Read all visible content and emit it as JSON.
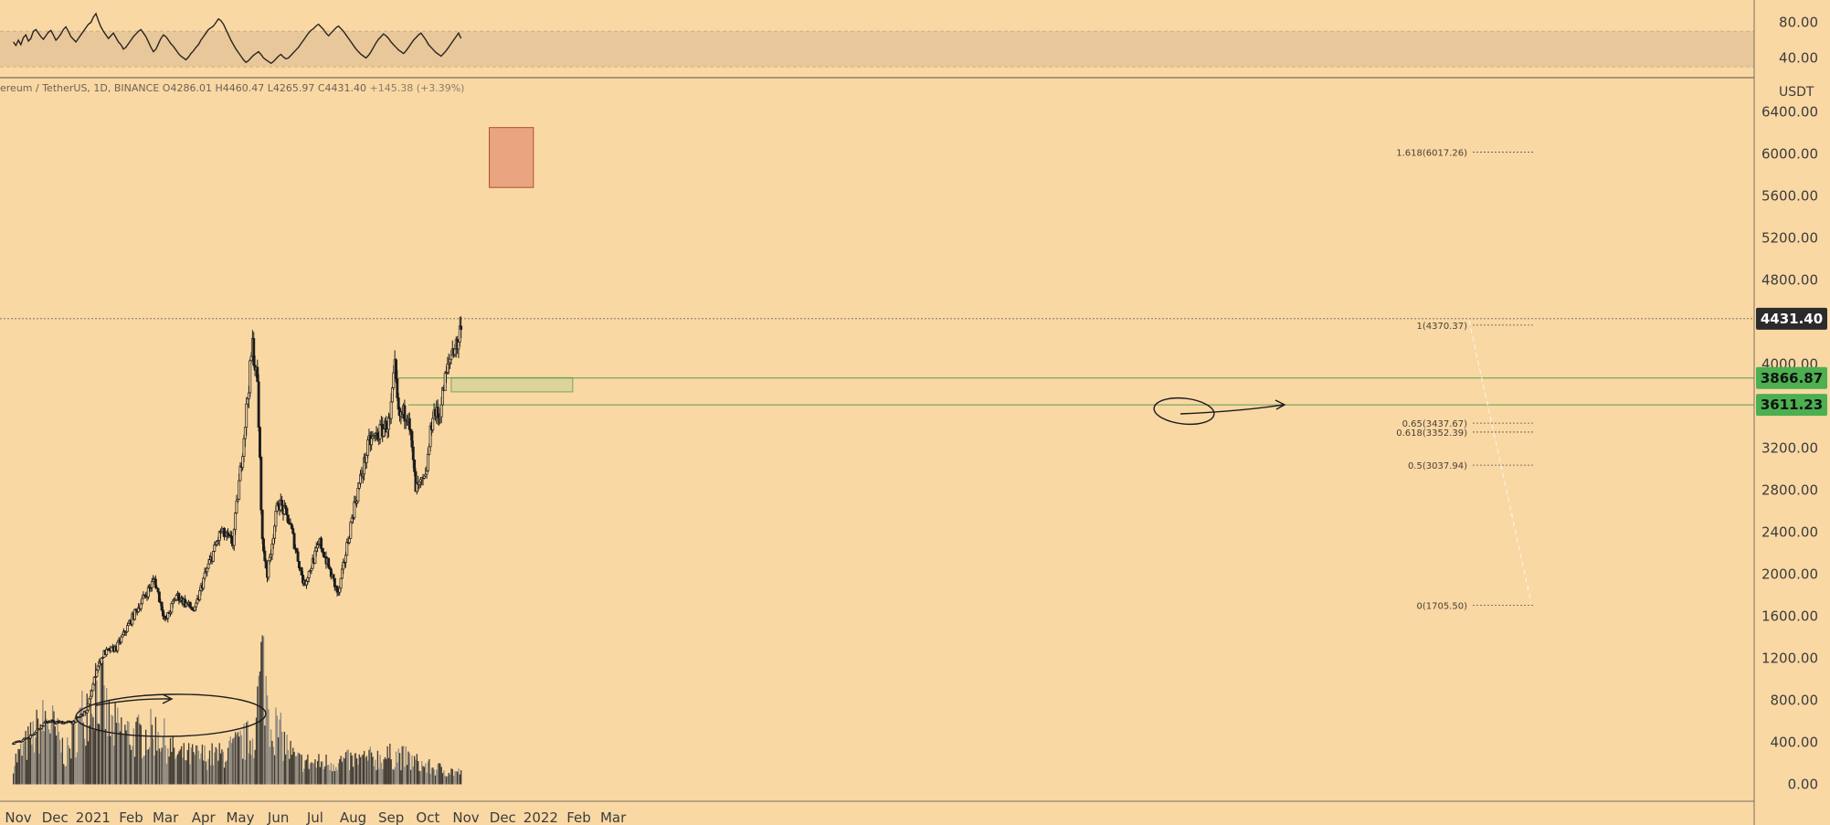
{
  "header": {
    "symbol": "ereum / TetherUS, 1D, BINANCE",
    "open": "O4286.01",
    "high": "H4460.47",
    "low": "L4265.97",
    "close": "C4431.40",
    "change": "+145.38 (+3.39%)"
  },
  "unit_label": "USDT",
  "colors": {
    "background": "#f9d8a4",
    "candle": "#1c1c1c",
    "rsi_band": "#e8c79a",
    "target_box": "#e8a57f",
    "support_zone": "#dcd49a",
    "support_tag": "#4caf50",
    "last_price_tag": "#2b2b2b"
  },
  "chart_data": [
    {
      "type": "line",
      "name": "rsi-pane",
      "y_ticks": [
        "80.00",
        "40.00"
      ],
      "ylim": [
        25,
        95
      ],
      "band": [
        30,
        70
      ],
      "x_start": "2020-10-28",
      "x_end": "2021-10-28",
      "values": [
        58,
        54,
        60,
        55,
        63,
        66,
        59,
        62,
        70,
        72,
        68,
        64,
        61,
        65,
        69,
        71,
        66,
        60,
        63,
        67,
        72,
        75,
        70,
        64,
        61,
        58,
        62,
        66,
        70,
        74,
        78,
        80,
        86,
        90,
        82,
        75,
        70,
        66,
        62,
        65,
        68,
        63,
        58,
        55,
        50,
        52,
        56,
        60,
        64,
        67,
        70,
        72,
        68,
        64,
        58,
        52,
        47,
        50,
        56,
        62,
        66,
        64,
        60,
        56,
        53,
        49,
        45,
        42,
        40,
        38,
        41,
        45,
        48,
        52,
        55,
        60,
        64,
        68,
        72,
        74,
        76,
        80,
        84,
        82,
        78,
        72,
        66,
        60,
        55,
        50,
        46,
        42,
        38,
        35,
        37,
        40,
        43,
        45,
        47,
        44,
        40,
        38,
        36,
        34,
        36,
        39,
        42,
        44,
        41,
        39,
        40,
        43,
        46,
        49,
        52,
        56,
        60,
        64,
        68,
        71,
        73,
        76,
        78,
        75,
        72,
        68,
        65,
        68,
        71,
        74,
        76,
        73,
        70,
        66,
        62,
        58,
        54,
        50,
        47,
        44,
        42,
        40,
        43,
        47,
        52,
        57,
        61,
        64,
        67,
        65,
        62,
        58,
        55,
        52,
        49,
        47,
        45,
        48,
        52,
        56,
        60,
        63,
        66,
        68,
        64,
        60,
        55,
        52,
        49,
        46,
        44,
        42,
        45,
        48,
        52,
        56,
        60,
        64,
        68,
        62
      ]
    },
    {
      "type": "candlestick",
      "name": "price-pane",
      "y_ticks": [
        "6400.00",
        "6000.00",
        "5600.00",
        "5200.00",
        "4800.00",
        "4000.00",
        "3200.00",
        "2800.00",
        "2400.00",
        "2000.00",
        "1600.00",
        "1200.00",
        "800.00",
        "400.00",
        "0.00"
      ],
      "ylim": [
        -100,
        6560
      ],
      "x_ticks": [
        "Nov",
        "Dec",
        "2021",
        "Feb",
        "Mar",
        "Apr",
        "May",
        "Jun",
        "Jul",
        "Aug",
        "Sep",
        "Oct",
        "Nov",
        "Dec",
        "2022",
        "Feb",
        "Mar"
      ],
      "x_tick_dates": [
        "2020-11-01",
        "2020-12-01",
        "2021-01-01",
        "2021-02-01",
        "2021-03-01",
        "2021-04-01",
        "2021-05-01",
        "2021-06-01",
        "2021-07-01",
        "2021-08-01",
        "2021-09-01",
        "2021-10-01",
        "2021-11-01",
        "2021-12-01",
        "2022-01-01",
        "2022-02-01",
        "2022-03-01"
      ],
      "close_path": [
        [
          "2020-10-28",
          390
        ],
        [
          "2020-11-10",
          450
        ],
        [
          "2020-11-24",
          600
        ],
        [
          "2020-12-01",
          590
        ],
        [
          "2020-12-15",
          590
        ],
        [
          "2020-12-27",
          700
        ],
        [
          "2021-01-04",
          1100
        ],
        [
          "2021-01-10",
          1250
        ],
        [
          "2021-01-20",
          1300
        ],
        [
          "2021-02-05",
          1650
        ],
        [
          "2021-02-20",
          1950
        ],
        [
          "2021-03-01",
          1550
        ],
        [
          "2021-03-10",
          1800
        ],
        [
          "2021-03-25",
          1650
        ],
        [
          "2021-04-01",
          1950
        ],
        [
          "2021-04-15",
          2400
        ],
        [
          "2021-04-25",
          2300
        ],
        [
          "2021-05-03",
          3200
        ],
        [
          "2021-05-11",
          4180
        ],
        [
          "2021-05-15",
          3800
        ],
        [
          "2021-05-19",
          2300
        ],
        [
          "2021-05-23",
          2000
        ],
        [
          "2021-06-01",
          2700
        ],
        [
          "2021-06-10",
          2500
        ],
        [
          "2021-06-22",
          1900
        ],
        [
          "2021-07-05",
          2300
        ],
        [
          "2021-07-20",
          1800
        ],
        [
          "2021-08-01",
          2600
        ],
        [
          "2021-08-14",
          3250
        ],
        [
          "2021-08-31",
          3450
        ],
        [
          "2021-09-04",
          3950
        ],
        [
          "2021-09-07",
          3500
        ],
        [
          "2021-09-15",
          3550
        ],
        [
          "2021-09-21",
          2800
        ],
        [
          "2021-09-29",
          2900
        ],
        [
          "2021-10-05",
          3550
        ],
        [
          "2021-10-10",
          3500
        ],
        [
          "2021-10-15",
          3850
        ],
        [
          "2021-10-21",
          4150
        ],
        [
          "2021-10-26",
          4200
        ],
        [
          "2021-10-28",
          4431.4
        ]
      ],
      "volume_path": [
        [
          "2020-10-28",
          230
        ],
        [
          "2020-11-25",
          700
        ],
        [
          "2020-12-10",
          300
        ],
        [
          "2021-01-04",
          1100
        ],
        [
          "2021-01-15",
          600
        ],
        [
          "2021-02-05",
          500
        ],
        [
          "2021-02-23",
          550
        ],
        [
          "2021-03-10",
          300
        ],
        [
          "2021-04-15",
          300
        ],
        [
          "2021-05-12",
          500
        ],
        [
          "2021-05-19",
          1300
        ],
        [
          "2021-05-25",
          700
        ],
        [
          "2021-06-15",
          250
        ],
        [
          "2021-07-01",
          220
        ],
        [
          "2021-08-01",
          250
        ],
        [
          "2021-09-07",
          300
        ],
        [
          "2021-10-01",
          180
        ],
        [
          "2021-10-28",
          120
        ]
      ],
      "last_price": "4431.40",
      "price_tags": [
        {
          "label": "4431.40",
          "value": 4431.4,
          "kind": "last"
        },
        {
          "label": "3866.87",
          "value": 3866.87,
          "kind": "support"
        },
        {
          "label": "3611.23",
          "value": 3611.23,
          "kind": "support"
        }
      ],
      "fib_levels": [
        {
          "label": "1.618(6017.26)",
          "value": 6017.26
        },
        {
          "label": "1(4370.37)",
          "value": 4370.37
        },
        {
          "label": "0.65(3437.67)",
          "value": 3437.67
        },
        {
          "label": "0.618(3352.39)",
          "value": 3352.39
        },
        {
          "label": "0.5(3037.94)",
          "value": 3037.94
        },
        {
          "label": "0(1705.50)",
          "value": 1705.5
        }
      ],
      "target_zone": {
        "from": "2021-11-20",
        "to": "2021-12-26",
        "low": 5680,
        "high": 6250
      },
      "support_zone": {
        "from": "2021-10-20",
        "to": "2022-01-27",
        "low": 3735,
        "high": 3870
      }
    }
  ]
}
